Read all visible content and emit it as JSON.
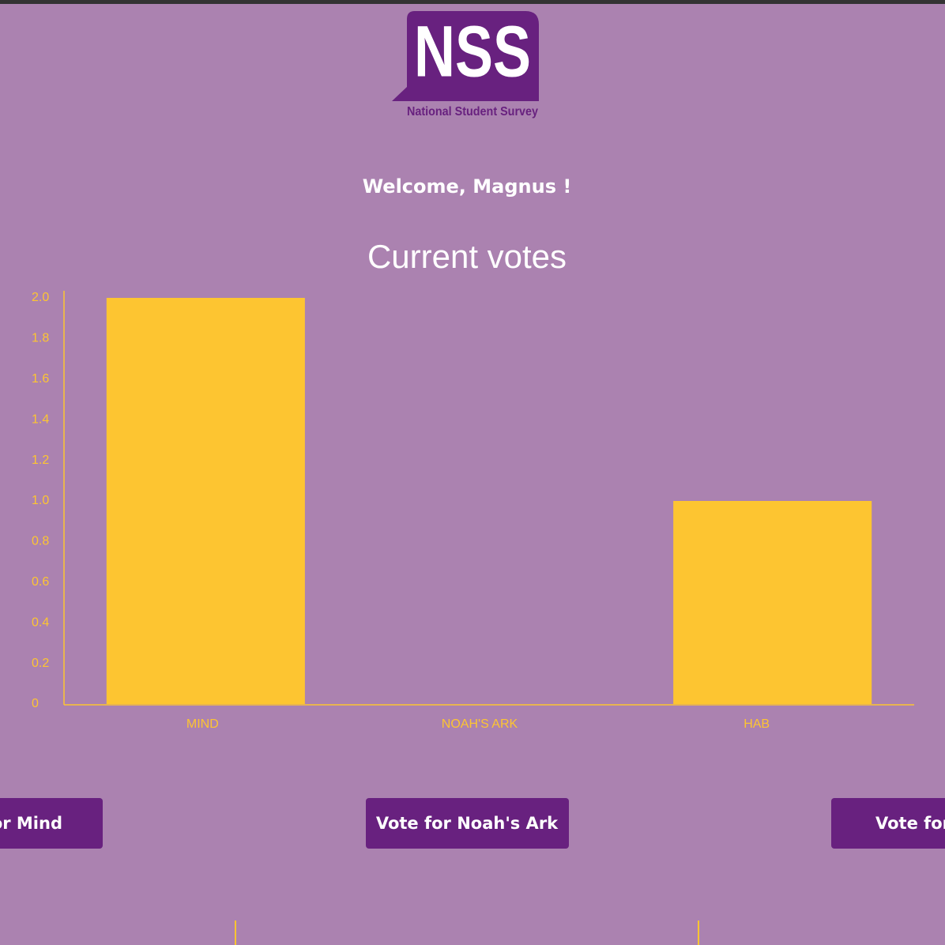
{
  "logo": {
    "mark": "NSS",
    "caption": "National Student Survey"
  },
  "welcome": "Welcome, Magnus !",
  "chart_data": {
    "type": "bar",
    "title": "Current votes",
    "categories": [
      "MIND",
      "NOAH'S ARK",
      "HAB"
    ],
    "values": [
      2,
      0,
      1
    ],
    "color": "#fdc531",
    "ylim": [
      0,
      2
    ],
    "yticks": [
      0,
      0.2,
      0.4,
      0.6,
      0.8,
      {
        "value": 1,
        "label": "1.0"
      },
      1.2,
      1.4,
      1.6,
      1.8,
      {
        "value": 2,
        "label": "2.0"
      }
    ],
    "grid": false
  },
  "buttons": [
    "or Mind",
    "Vote for Noah's Ark",
    "Vote for"
  ]
}
